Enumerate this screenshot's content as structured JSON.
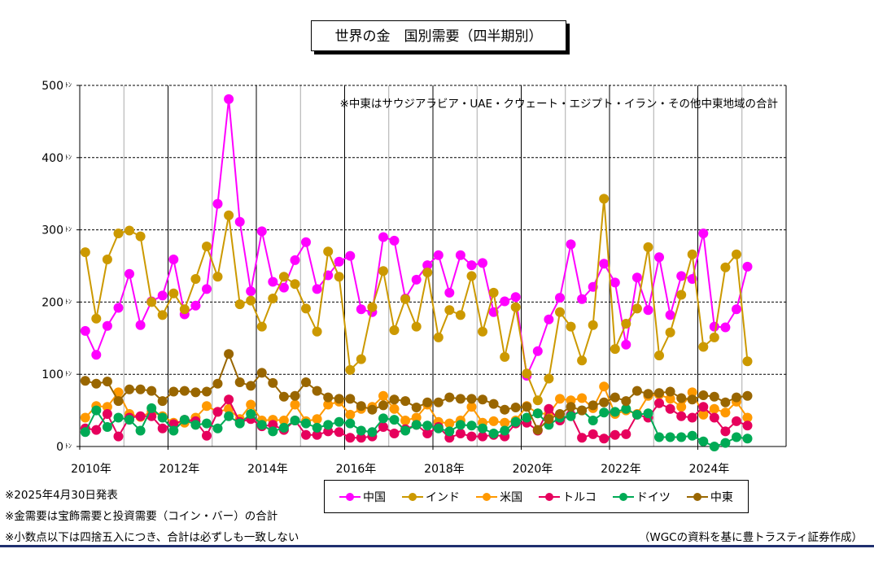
{
  "chart_data": {
    "type": "line",
    "title": "世界の金　国別需要（四半期別）",
    "annotation": "※中東はサウジアラビア・UAE・クウェート・エジプト・イラン・その他中東地域の合計",
    "y_unit": "ﾄﾝ",
    "ylim": [
      0,
      500
    ],
    "y_ticks": [
      0,
      100,
      200,
      300,
      400,
      500
    ],
    "x_start": 2010,
    "x_period": "quarter",
    "x_tick_labels": [
      "2010年",
      "2012年",
      "2014年",
      "2016年",
      "2018年",
      "2020年",
      "2022年",
      "2024年"
    ],
    "grid": "vertical each year, dashed horizontal every 100",
    "legend_position": "bottom",
    "series": [
      {
        "name": "中国",
        "color": "#ff00ff",
        "values": [
          160,
          127,
          167,
          192,
          239,
          168,
          201,
          209,
          259,
          183,
          195,
          218,
          336,
          481,
          311,
          215,
          298,
          228,
          220,
          258,
          283,
          218,
          237,
          256,
          264,
          190,
          186,
          290,
          285,
          205,
          231,
          251,
          265,
          213,
          265,
          251,
          254,
          186,
          201,
          207,
          98,
          132,
          176,
          206,
          280,
          204,
          221,
          253,
          227,
          141,
          234,
          189,
          262,
          182,
          236,
          232,
          295,
          166,
          165,
          190,
          249
        ]
      },
      {
        "name": "インド",
        "color": "#cc9900",
        "values": [
          269,
          177,
          259,
          295,
          299,
          291,
          200,
          182,
          212,
          190,
          232,
          277,
          235,
          320,
          197,
          202,
          166,
          205,
          235,
          225,
          191,
          159,
          270,
          235,
          106,
          121,
          193,
          243,
          161,
          204,
          166,
          241,
          151,
          189,
          182,
          236,
          159,
          213,
          124,
          193,
          101,
          64,
          94,
          186,
          166,
          119,
          168,
          343,
          135,
          170,
          191,
          276,
          126,
          158,
          210,
          266,
          138,
          151,
          248,
          266,
          118
        ]
      },
      {
        "name": "米国",
        "color": "#ff9900",
        "values": [
          40,
          56,
          55,
          75,
          45,
          41,
          48,
          42,
          33,
          33,
          40,
          56,
          48,
          52,
          38,
          58,
          36,
          37,
          36,
          58,
          35,
          38,
          58,
          62,
          44,
          52,
          55,
          70,
          52,
          36,
          40,
          58,
          34,
          32,
          36,
          55,
          33,
          35,
          33,
          36,
          56,
          46,
          45,
          66,
          64,
          67,
          53,
          83,
          45,
          50,
          45,
          70,
          72,
          66,
          55,
          75,
          44,
          52,
          47,
          62,
          40
        ]
      },
      {
        "name": "トルコ",
        "color": "#e6005c",
        "values": [
          25,
          23,
          45,
          14,
          40,
          42,
          42,
          25,
          31,
          37,
          35,
          15,
          48,
          65,
          34,
          38,
          28,
          30,
          23,
          36,
          16,
          16,
          21,
          20,
          12,
          12,
          14,
          27,
          18,
          24,
          30,
          18,
          27,
          12,
          18,
          14,
          14,
          16,
          14,
          32,
          33,
          22,
          52,
          36,
          44,
          12,
          17,
          11,
          16,
          17,
          44,
          40,
          60,
          52,
          42,
          40,
          55,
          40,
          21,
          35,
          29
        ]
      },
      {
        "name": "ドイツ",
        "color": "#00aa55",
        "values": [
          20,
          50,
          27,
          40,
          37,
          22,
          53,
          40,
          22,
          37,
          30,
          32,
          25,
          42,
          32,
          45,
          30,
          21,
          26,
          36,
          32,
          26,
          30,
          34,
          32,
          22,
          20,
          39,
          37,
          22,
          30,
          29,
          25,
          21,
          30,
          29,
          25,
          18,
          22,
          34,
          40,
          46,
          30,
          40,
          42,
          50,
          36,
          47,
          48,
          52,
          44,
          46,
          13,
          13,
          13,
          15,
          7,
          0,
          5,
          13,
          11
        ]
      },
      {
        "name": "中東",
        "color": "#996600",
        "values": [
          91,
          87,
          90,
          63,
          79,
          79,
          77,
          63,
          76,
          77,
          75,
          76,
          87,
          128,
          89,
          84,
          102,
          88,
          69,
          70,
          89,
          77,
          68,
          66,
          66,
          56,
          51,
          57,
          65,
          63,
          54,
          61,
          61,
          68,
          66,
          66,
          65,
          59,
          51,
          54,
          55,
          23,
          38,
          45,
          55,
          50,
          57,
          61,
          68,
          63,
          77,
          73,
          74,
          76,
          67,
          65,
          71,
          69,
          61,
          68,
          70
        ]
      }
    ]
  },
  "notes": [
    "※2025年4月30日発表",
    "※金需要は宝飾需要と投資需要（コイン・バー）の合計",
    "※小数点以下は四捨五入につき、合計は必ずしも一致しない"
  ],
  "credit": "（WGCの資料を基に豊トラスティ証券作成）"
}
